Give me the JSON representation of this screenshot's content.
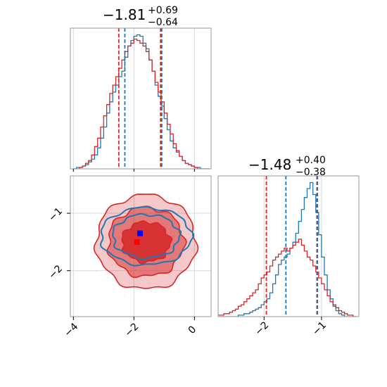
{
  "chart_data": [
    {
      "type": "histogram",
      "panel": "marginal-param-1",
      "title": {
        "median": "−1.81",
        "plus": "+0.69",
        "minus": "−0.64"
      },
      "xlim": [
        -4.1,
        0.55
      ],
      "bins": [
        -4.0,
        -3.9,
        -3.8,
        -3.7,
        -3.6,
        -3.5,
        -3.4,
        -3.3,
        -3.2,
        -3.1,
        -3.0,
        -2.9,
        -2.8,
        -2.7,
        -2.6,
        -2.5,
        -2.4,
        -2.3,
        -2.2,
        -2.1,
        -2.0,
        -1.9,
        -1.8,
        -1.7,
        -1.6,
        -1.5,
        -1.4,
        -1.3,
        -1.2,
        -1.1,
        -1.0,
        -0.9,
        -0.8,
        -0.7,
        -0.6,
        -0.5,
        -0.4,
        -0.3,
        -0.2,
        -0.1,
        0.0,
        0.1,
        0.2,
        0.3,
        0.4,
        0.5
      ],
      "series": [
        {
          "color": "#1f77b4",
          "values": [
            0,
            1,
            1,
            2,
            3,
            5,
            7,
            10,
            15,
            22,
            30,
            40,
            48,
            55,
            60,
            66,
            70,
            80,
            88,
            92,
            95,
            96,
            95,
            90,
            86,
            78,
            70,
            60,
            52,
            45,
            36,
            28,
            20,
            15,
            12,
            9,
            6,
            4,
            3,
            2,
            1,
            1,
            0,
            0,
            0
          ]
        },
        {
          "color": "#d62728",
          "values": [
            0,
            0,
            1,
            2,
            4,
            6,
            10,
            16,
            22,
            30,
            38,
            46,
            54,
            60,
            66,
            72,
            78,
            84,
            88,
            90,
            93,
            92,
            90,
            88,
            84,
            78,
            70,
            62,
            55,
            48,
            40,
            32,
            25,
            18,
            13,
            9,
            6,
            4,
            3,
            2,
            1,
            0,
            0,
            0,
            0
          ]
        }
      ],
      "quantile_lines": [
        {
          "color": "#d62728",
          "values": [
            -2.5,
            -1.12
          ]
        },
        {
          "color": "#1f77b4",
          "values": [
            -2.3,
            -1.08
          ]
        }
      ]
    },
    {
      "type": "contour",
      "panel": "joint-param-1-vs-param-2",
      "xlim": [
        -4.1,
        0.55
      ],
      "ylim": [
        -2.8,
        -0.35
      ],
      "x_ticks": [
        "−4",
        "−2",
        "0"
      ],
      "x_tick_values": [
        -4,
        -2,
        0
      ],
      "y_ticks": [
        "−1",
        "−2"
      ],
      "y_tick_values": [
        -1,
        -2
      ],
      "series": [
        {
          "color": "#d62728",
          "center": [
            -1.6,
            -1.5
          ],
          "filled": true,
          "levels": [
            {
              "rx": 1.65,
              "ry": 0.82
            },
            {
              "rx": 1.25,
              "ry": 0.6
            },
            {
              "rx": 0.8,
              "ry": 0.35
            }
          ]
        },
        {
          "color": "#1f77b4",
          "center": [
            -1.6,
            -1.4
          ],
          "filled": false,
          "levels": [
            {
              "rx": 1.5,
              "ry": 0.5
            },
            {
              "rx": 1.1,
              "ry": 0.38
            }
          ]
        }
      ],
      "markers": [
        {
          "color": "#0000ff",
          "x": -1.8,
          "y": -1.35
        },
        {
          "color": "#ff0000",
          "x": -1.9,
          "y": -1.5
        }
      ]
    },
    {
      "type": "histogram",
      "panel": "marginal-param-2",
      "title": {
        "median": "−1.48",
        "plus": "+0.40",
        "minus": "−0.38"
      },
      "xlim": [
        -2.8,
        -0.35
      ],
      "x_ticks": [
        "−2",
        "−1"
      ],
      "x_tick_values": [
        -2,
        -1
      ],
      "bins": [
        -2.8,
        -2.75,
        -2.7,
        -2.65,
        -2.6,
        -2.55,
        -2.5,
        -2.45,
        -2.4,
        -2.35,
        -2.3,
        -2.25,
        -2.2,
        -2.15,
        -2.1,
        -2.05,
        -2.0,
        -1.95,
        -1.9,
        -1.85,
        -1.8,
        -1.75,
        -1.7,
        -1.65,
        -1.6,
        -1.55,
        -1.5,
        -1.45,
        -1.4,
        -1.35,
        -1.3,
        -1.25,
        -1.2,
        -1.15,
        -1.1,
        -1.05,
        -1.0,
        -0.95,
        -0.9,
        -0.85,
        -0.8,
        -0.75,
        -0.7,
        -0.65,
        -0.6,
        -0.55,
        -0.5,
        -0.45,
        -0.4
      ],
      "series": [
        {
          "color": "#1f77b4",
          "values": [
            0,
            0,
            0,
            0,
            0,
            0,
            0,
            1,
            1,
            2,
            2,
            3,
            4,
            5,
            6,
            8,
            10,
            12,
            16,
            22,
            28,
            35,
            38,
            40,
            42,
            46,
            50,
            56,
            64,
            72,
            80,
            86,
            90,
            82,
            70,
            55,
            40,
            28,
            18,
            12,
            7,
            4,
            2,
            1,
            0,
            0,
            0,
            0
          ]
        },
        {
          "color": "#d62728",
          "values": [
            1,
            1,
            2,
            2,
            3,
            4,
            5,
            7,
            8,
            10,
            12,
            14,
            16,
            18,
            22,
            26,
            28,
            30,
            34,
            38,
            40,
            42,
            44,
            46,
            44,
            46,
            48,
            50,
            52,
            48,
            44,
            40,
            38,
            34,
            30,
            26,
            22,
            18,
            14,
            10,
            8,
            6,
            4,
            3,
            2,
            1,
            1,
            0
          ]
        }
      ],
      "quantile_lines": [
        {
          "color": "#d62728",
          "values": [
            -1.96,
            -1.08
          ]
        },
        {
          "color": "#1f77b4",
          "values": [
            -1.62,
            -1.07
          ]
        }
      ]
    }
  ]
}
